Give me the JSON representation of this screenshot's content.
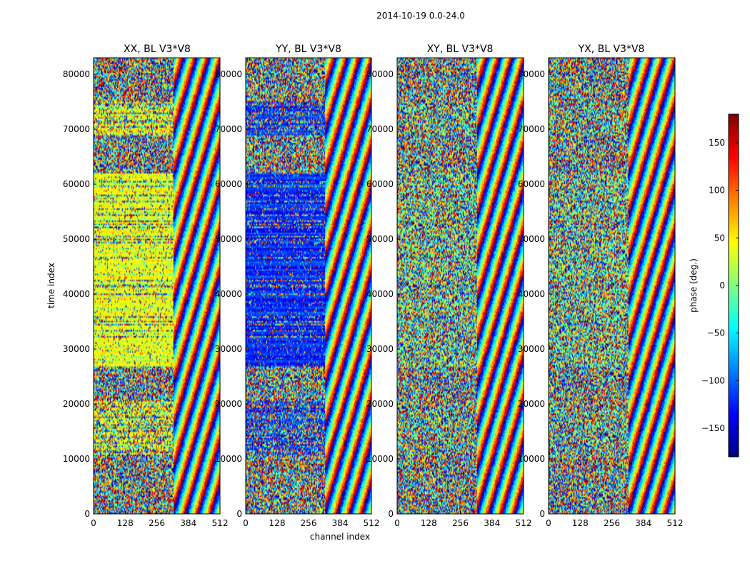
{
  "chart_data": {
    "type": "heatmap",
    "title": "2014-10-19 0.0-24.0",
    "xlabel": "channel index",
    "ylabel": "time index",
    "xlim": [
      0,
      512
    ],
    "ylim": [
      0,
      83000
    ],
    "x_ticks": [
      0,
      128,
      256,
      384,
      512
    ],
    "y_ticks": [
      0,
      10000,
      20000,
      30000,
      40000,
      50000,
      60000,
      70000,
      80000
    ],
    "colormap": "jet",
    "colorbar": {
      "label": "phase (deg.)",
      "range": [
        -180,
        180
      ],
      "ticks": [
        -150,
        -100,
        -50,
        0,
        50,
        100,
        150
      ],
      "placement": "right"
    },
    "panels": [
      {
        "title": "XX, BL V3*V8",
        "dominant_phase_deg": 35
      },
      {
        "title": "YY, BL V3*V8",
        "dominant_phase_deg": -120
      },
      {
        "title": "XY, BL V3*V8",
        "dominant_phase_deg": 0
      },
      {
        "title": "YX, BL V3*V8",
        "dominant_phase_deg": 0
      }
    ]
  },
  "colors": {
    "jet_stops": [
      "#00007f",
      "#0000ff",
      "#007fff",
      "#00ffff",
      "#7fff7f",
      "#ffff00",
      "#ff7f00",
      "#ff0000",
      "#7f0000"
    ]
  }
}
